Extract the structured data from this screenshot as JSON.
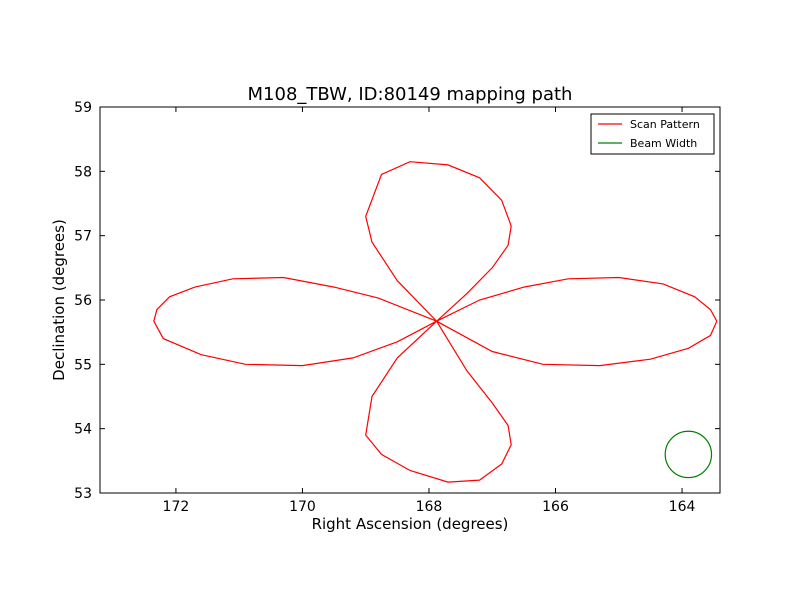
{
  "chart_data": {
    "type": "line",
    "title": "M108_TBW, ID:80149 mapping path",
    "xlabel": "Right Ascension (degrees)",
    "ylabel": "Declination (degrees)",
    "xlim": [
      173.2,
      163.4
    ],
    "ylim": [
      53,
      59
    ],
    "x_inverted": true,
    "xticks": [
      172,
      170,
      168,
      166,
      164
    ],
    "yticks": [
      53,
      54,
      55,
      56,
      57,
      58,
      59
    ],
    "grid": false,
    "legend_position": "top-right",
    "center": {
      "ra": 167.88,
      "dec": 55.67
    },
    "series": [
      {
        "name": "Scan Pattern",
        "color": "#ff0000",
        "x": [
          167.88,
          168.8,
          169.5,
          170.3,
          171.1,
          171.7,
          172.1,
          172.3,
          172.35,
          172.2,
          171.6,
          170.9,
          170.0,
          169.2,
          168.5,
          167.88,
          167.2,
          166.5,
          165.8,
          165.0,
          164.3,
          163.8,
          163.55,
          163.45,
          163.55,
          163.9,
          164.5,
          165.3,
          166.2,
          167.0,
          167.88,
          167.4,
          167.0,
          166.75,
          166.7,
          166.85,
          167.2,
          167.7,
          168.3,
          168.75,
          169.0,
          168.9,
          168.5,
          167.88,
          168.5,
          168.9,
          169.0,
          168.75,
          168.3,
          167.7,
          167.2,
          166.85,
          166.7,
          166.75,
          167.0,
          167.4,
          167.88
        ],
        "y": [
          55.67,
          56.03,
          56.2,
          56.35,
          56.33,
          56.2,
          56.05,
          55.85,
          55.67,
          55.4,
          55.15,
          55.0,
          54.98,
          55.1,
          55.35,
          55.67,
          56.0,
          56.2,
          56.33,
          56.35,
          56.25,
          56.05,
          55.85,
          55.67,
          55.45,
          55.25,
          55.08,
          54.98,
          55.0,
          55.2,
          55.67,
          56.1,
          56.5,
          56.85,
          57.15,
          57.55,
          57.9,
          58.1,
          58.15,
          57.95,
          57.3,
          56.9,
          56.3,
          55.67,
          55.1,
          54.5,
          53.9,
          53.6,
          53.35,
          53.17,
          53.2,
          53.45,
          53.75,
          54.05,
          54.4,
          54.9,
          55.67
        ]
      },
      {
        "name": "Beam Width",
        "color": "#008000",
        "shape": "circle",
        "center": {
          "ra": 163.9,
          "dec": 53.6
        },
        "radius_deg": 0.36
      }
    ]
  }
}
